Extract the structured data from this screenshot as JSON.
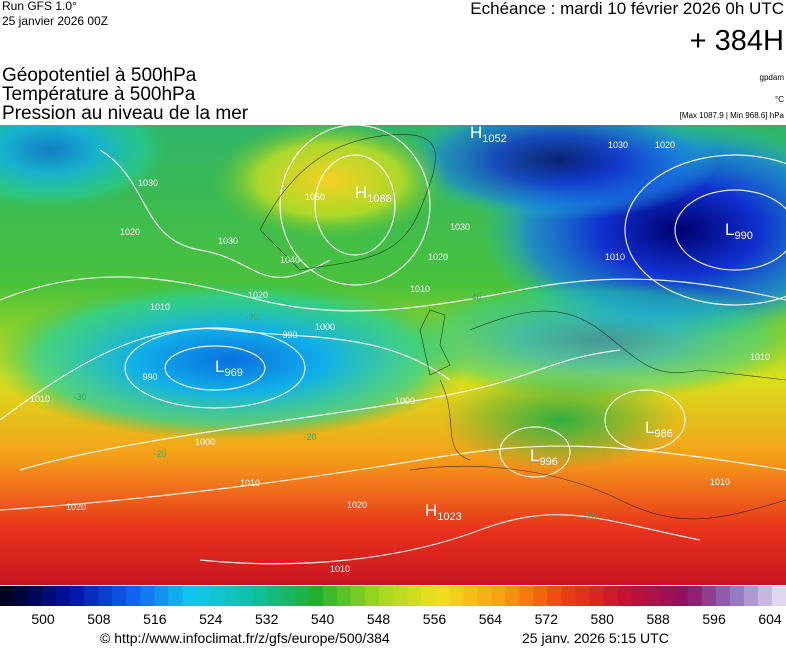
{
  "header": {
    "run": "Run GFS 1.0°",
    "run_date": "25 janvier 2026 00Z",
    "valid": "Echéance : mardi 10 février 2026 0h UTC",
    "lead": "+ 384H",
    "fields": [
      "Géopotentiel à 500hPa",
      "Température à 500hPa",
      "Pression au niveau de la mer"
    ],
    "units": [
      "gpdam",
      "°C",
      "[Max 1087.9 | Min 968.6] hPa"
    ]
  },
  "centers": [
    {
      "letter": "H",
      "value": "1052"
    },
    {
      "letter": "H",
      "value": "1088"
    },
    {
      "letter": "L",
      "value": "990"
    },
    {
      "letter": "L",
      "value": "969"
    },
    {
      "letter": "L",
      "value": "986"
    },
    {
      "letter": "L",
      "value": "996"
    },
    {
      "letter": "H",
      "value": "1023"
    }
  ],
  "contour_labels": [
    "1030",
    "1020",
    "1030",
    "1040",
    "1050",
    "1020",
    "1030",
    "1020",
    "1010",
    "1010",
    "1000",
    "990",
    "990",
    "1000",
    "1000",
    "1010",
    "1010",
    "1020",
    "1020",
    "1030",
    "1020",
    "1010",
    "1010",
    "-30",
    "-30",
    "-20",
    "-20",
    "-40",
    "-20",
    "1010",
    "1010"
  ],
  "colorbar": {
    "labels": [
      "500",
      "508",
      "516",
      "524",
      "532",
      "540",
      "548",
      "556",
      "564",
      "572",
      "580",
      "588",
      "596",
      "604"
    ]
  },
  "footer": {
    "source": "© http://www.infoclimat.fr/z/gfs/europe/500/384",
    "issued": "25 janv. 2026  5:15 UTC"
  }
}
